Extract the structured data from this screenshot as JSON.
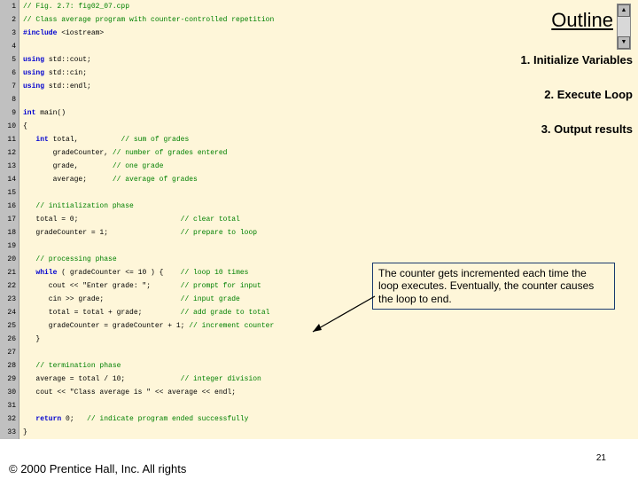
{
  "code": {
    "bg": "#fef6d9",
    "gutter_bg": "#c0c0c0",
    "keyword_color": "#0000d0",
    "comment_color": "#008000",
    "lines": [
      {
        "n": 1,
        "seg": [
          [
            "cm",
            "// Fig. 2.7: fig02_07.cpp"
          ]
        ]
      },
      {
        "n": 2,
        "seg": [
          [
            "cm",
            "// Class average program with counter-controlled repetition"
          ]
        ]
      },
      {
        "n": 3,
        "seg": [
          [
            "kw",
            "#include"
          ],
          [
            "tx",
            " <iostream>"
          ]
        ]
      },
      {
        "n": 4,
        "seg": []
      },
      {
        "n": 5,
        "seg": [
          [
            "kw",
            "using"
          ],
          [
            "tx",
            " std::cout;"
          ]
        ]
      },
      {
        "n": 6,
        "seg": [
          [
            "kw",
            "using"
          ],
          [
            "tx",
            " std::cin;"
          ]
        ]
      },
      {
        "n": 7,
        "seg": [
          [
            "kw",
            "using"
          ],
          [
            "tx",
            " std::endl;"
          ]
        ]
      },
      {
        "n": 8,
        "seg": []
      },
      {
        "n": 9,
        "seg": [
          [
            "kw",
            "int"
          ],
          [
            "tx",
            " main()"
          ]
        ]
      },
      {
        "n": 10,
        "seg": [
          [
            "tx",
            "{"
          ]
        ]
      },
      {
        "n": 11,
        "seg": [
          [
            "tx",
            "   "
          ],
          [
            "kw",
            "int"
          ],
          [
            "tx",
            " total,          "
          ],
          [
            "cm",
            "// sum of grades"
          ]
        ]
      },
      {
        "n": 12,
        "seg": [
          [
            "tx",
            "       gradeCounter, "
          ],
          [
            "cm",
            "// number of grades entered"
          ]
        ]
      },
      {
        "n": 13,
        "seg": [
          [
            "tx",
            "       grade,        "
          ],
          [
            "cm",
            "// one grade"
          ]
        ]
      },
      {
        "n": 14,
        "seg": [
          [
            "tx",
            "       average;      "
          ],
          [
            "cm",
            "// average of grades"
          ]
        ]
      },
      {
        "n": 15,
        "seg": []
      },
      {
        "n": 16,
        "seg": [
          [
            "tx",
            "   "
          ],
          [
            "cm",
            "// initialization phase"
          ]
        ]
      },
      {
        "n": 17,
        "seg": [
          [
            "tx",
            "   total = 0;                        "
          ],
          [
            "cm",
            "// clear total"
          ]
        ]
      },
      {
        "n": 18,
        "seg": [
          [
            "tx",
            "   gradeCounter = 1;                 "
          ],
          [
            "cm",
            "// prepare to loop"
          ]
        ]
      },
      {
        "n": 19,
        "seg": []
      },
      {
        "n": 20,
        "seg": [
          [
            "tx",
            "   "
          ],
          [
            "cm",
            "// processing phase"
          ]
        ]
      },
      {
        "n": 21,
        "seg": [
          [
            "tx",
            "   "
          ],
          [
            "kw",
            "while"
          ],
          [
            "tx",
            " ( gradeCounter <= 10 ) {    "
          ],
          [
            "cm",
            "// loop 10 times"
          ]
        ]
      },
      {
        "n": 22,
        "seg": [
          [
            "tx",
            "      cout << \"Enter grade: \";       "
          ],
          [
            "cm",
            "// prompt for input"
          ]
        ]
      },
      {
        "n": 23,
        "seg": [
          [
            "tx",
            "      cin >> grade;                  "
          ],
          [
            "cm",
            "// input grade"
          ]
        ]
      },
      {
        "n": 24,
        "seg": [
          [
            "tx",
            "      total = total + grade;         "
          ],
          [
            "cm",
            "// add grade to total"
          ]
        ]
      },
      {
        "n": 25,
        "seg": [
          [
            "tx",
            "      gradeCounter = gradeCounter + 1; "
          ],
          [
            "cm",
            "// increment counter"
          ]
        ]
      },
      {
        "n": 26,
        "seg": [
          [
            "tx",
            "   }"
          ]
        ]
      },
      {
        "n": 27,
        "seg": []
      },
      {
        "n": 28,
        "seg": [
          [
            "tx",
            "   "
          ],
          [
            "cm",
            "// termination phase"
          ]
        ]
      },
      {
        "n": 29,
        "seg": [
          [
            "tx",
            "   average = total / 10;             "
          ],
          [
            "cm",
            "// integer division"
          ]
        ]
      },
      {
        "n": 30,
        "seg": [
          [
            "tx",
            "   cout << \"Class average is \" << average << endl;"
          ]
        ]
      },
      {
        "n": 31,
        "seg": []
      },
      {
        "n": 32,
        "seg": [
          [
            "tx",
            "   "
          ],
          [
            "kw",
            "return"
          ],
          [
            "tx",
            " 0;   "
          ],
          [
            "cm",
            "// indicate program ended successfully"
          ]
        ]
      },
      {
        "n": 33,
        "seg": [
          [
            "tx",
            "}"
          ]
        ]
      }
    ]
  },
  "outline": {
    "title": "Outline",
    "items": [
      "1.  Initialize Variables",
      "2.  Execute Loop",
      "3.  Output results"
    ]
  },
  "callout": "The counter gets incremented each time the loop executes.  Eventually, the counter causes the loop to end.",
  "footer": "© 2000 Prentice Hall, Inc.  All rights",
  "pagenum": "21"
}
